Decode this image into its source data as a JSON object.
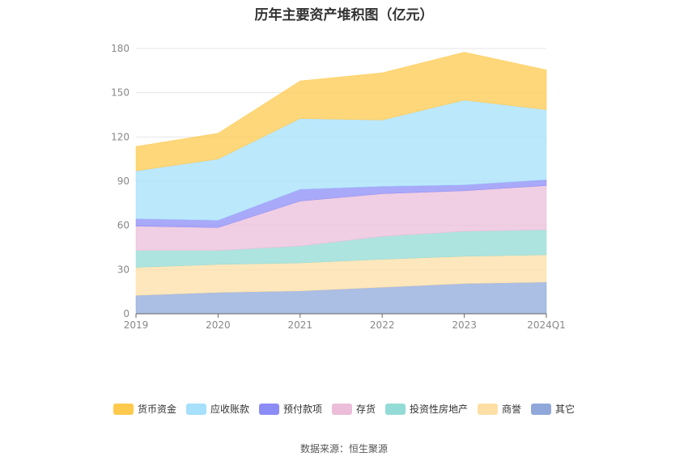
{
  "chart_data": {
    "type": "area",
    "stacked": true,
    "title": "历年主要资产堆积图（亿元）",
    "x": [
      "2019",
      "2020",
      "2021",
      "2022",
      "2023",
      "2024Q1"
    ],
    "ylim": [
      0,
      180
    ],
    "yticks": [
      0,
      30,
      60,
      90,
      120,
      150,
      180
    ],
    "grid": true,
    "legend_position": "bottom",
    "series": [
      {
        "name": "其它",
        "color": "#8fa8d9",
        "values": [
          12.5,
          14.5,
          15.5,
          18,
          20.5,
          21.5
        ]
      },
      {
        "name": "商誉",
        "color": "#fddfa6",
        "values": [
          19,
          19,
          19,
          19,
          18.5,
          18.5
        ]
      },
      {
        "name": "投资性房地产",
        "color": "#93dbd6",
        "values": [
          11.5,
          9.5,
          11.5,
          15.5,
          17,
          17
        ]
      },
      {
        "name": "存货",
        "color": "#ebbdd9",
        "values": [
          16.5,
          15.5,
          30.5,
          29,
          27.5,
          30
        ]
      },
      {
        "name": "预付款项",
        "color": "#8c8cf7",
        "values": [
          5,
          5,
          8,
          5,
          4,
          4
        ]
      },
      {
        "name": "应收账款",
        "color": "#a6e0fb",
        "values": [
          32.5,
          41.5,
          48,
          45,
          57.5,
          47.5
        ]
      },
      {
        "name": "货币资金",
        "color": "#fec94d",
        "values": [
          16.5,
          17.5,
          25.5,
          32,
          32.5,
          27
        ]
      }
    ]
  },
  "legend_order": [
    "货币资金",
    "应收账款",
    "预付款项",
    "存货",
    "投资性房地产",
    "商誉",
    "其它"
  ],
  "source": "数据来源：恒生聚源"
}
